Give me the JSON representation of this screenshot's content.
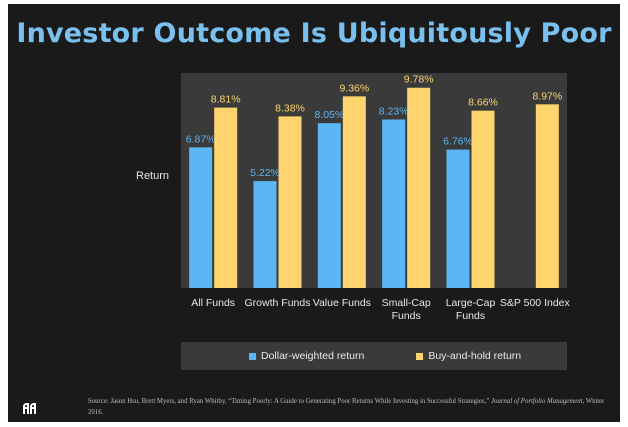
{
  "title": "Investor Outcome Is Ubiquitously Poor",
  "colors": {
    "background": "#1a1a1a",
    "plot_area": "#3a3a3a",
    "title": "#79c0ee",
    "dollar_weighted": "#5bb6f4",
    "buy_and_hold": "#fdd46d"
  },
  "legend": {
    "dollar_weighted": "Dollar-weighted return",
    "buy_and_hold": "Buy-and-hold return"
  },
  "source": {
    "prefix": "Source: Jason Hsu, Brett Myers, and Ryan Whitby, “Timing Poorly: A Guide to Generating Poor Returns While Investing in Successful Strategies,”",
    "journal": "Journal of Portfolio Management",
    "suffix": ", Winter 2016."
  },
  "logo_icon": "research-affiliates-logo",
  "chart_data": {
    "type": "bar",
    "title": "Investor Outcome Is Ubiquitously Poor",
    "ylabel": "Return",
    "xlabel": "",
    "categories": [
      "All Funds",
      "Growth Funds",
      "Value Funds",
      "Small-Cap Funds",
      "Large-Cap Funds",
      "S&P 500 Index"
    ],
    "category_lines": [
      [
        "All Funds"
      ],
      [
        "Growth Funds"
      ],
      [
        "Value Funds"
      ],
      [
        "Small-Cap",
        "Funds"
      ],
      [
        "Large-Cap",
        "Funds"
      ],
      [
        "S&P 500 Index"
      ]
    ],
    "ylim": [
      0,
      10.5
    ],
    "grid": false,
    "legend_position": "bottom",
    "series": [
      {
        "name": "Dollar-weighted return",
        "values": [
          6.87,
          5.22,
          8.05,
          8.23,
          6.76,
          null
        ],
        "labels": [
          "6.87%",
          "5.22%",
          "8.05%",
          "8.23%",
          "6.76%",
          ""
        ]
      },
      {
        "name": "Buy-and-hold return",
        "values": [
          8.81,
          8.38,
          9.36,
          9.78,
          8.66,
          8.97
        ],
        "labels": [
          "8.81%",
          "8.38%",
          "9.36%",
          "9.78%",
          "8.66%",
          "8.97%"
        ]
      }
    ]
  }
}
